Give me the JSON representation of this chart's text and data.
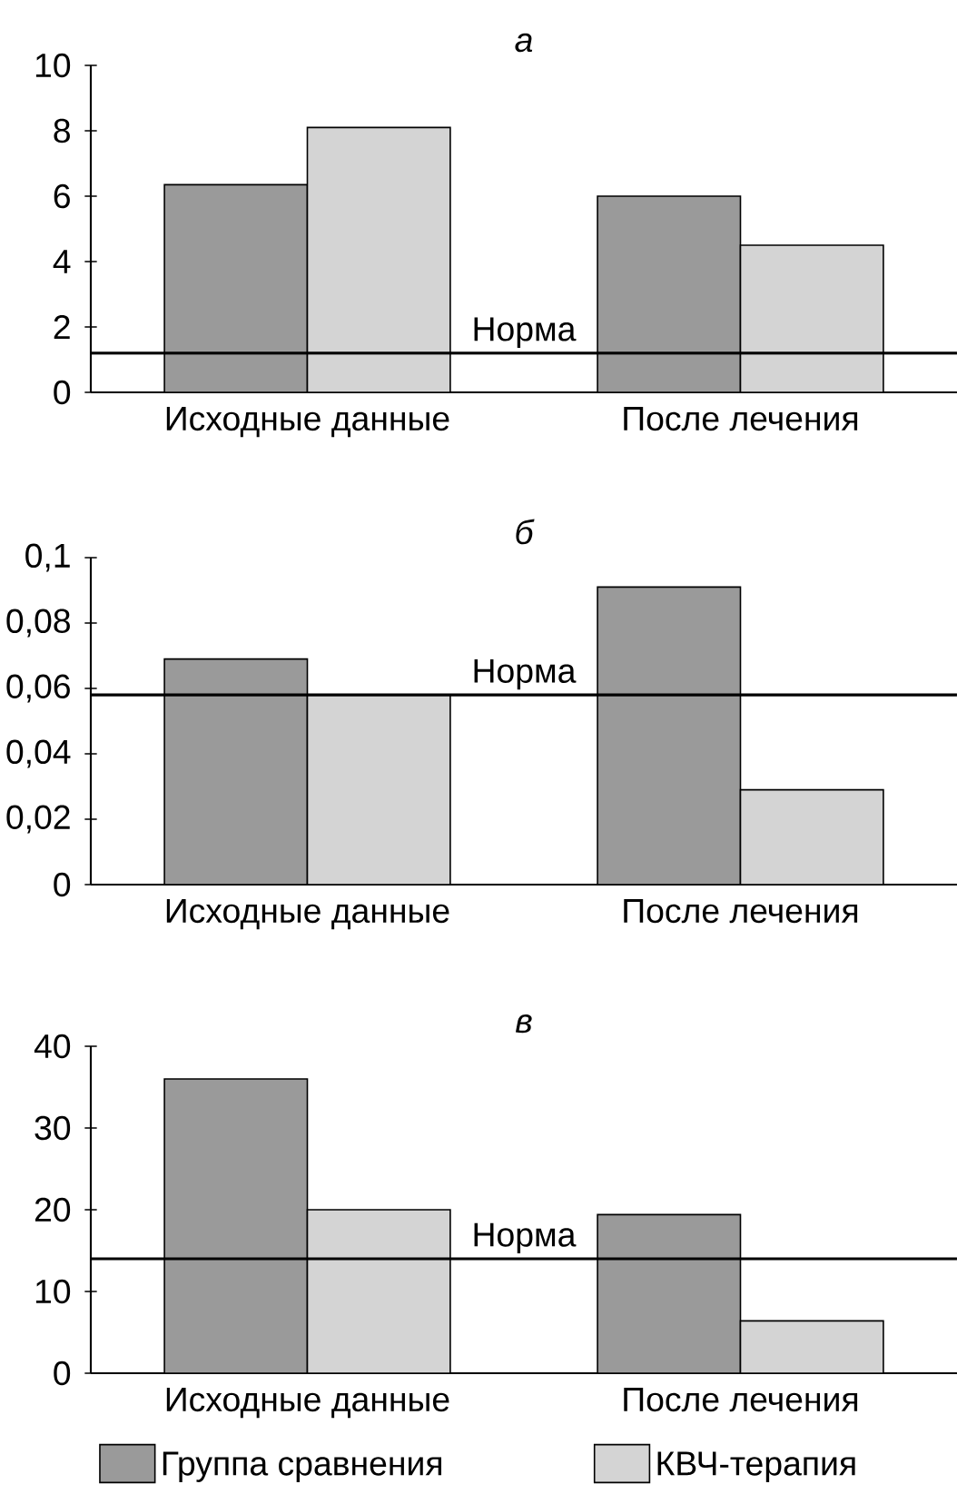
{
  "chart_data": [
    {
      "type": "bar",
      "title": "а",
      "categories": [
        "Исходные данные",
        "После лечения"
      ],
      "series": [
        {
          "color": "#9a9a9a",
          "values": [
            6.35,
            6.0
          ]
        },
        {
          "color": "#d4d4d4",
          "values": [
            8.1,
            4.5
          ]
        }
      ],
      "ylim": [
        0,
        10
      ],
      "yticks": [
        0,
        2,
        4,
        6,
        8,
        10
      ],
      "ref_lines": [
        {
          "axis": "y",
          "value": 1.2,
          "label": "Норма"
        }
      ]
    },
    {
      "type": "bar",
      "title": "б",
      "categories": [
        "Исходные данные",
        "После лечения"
      ],
      "series": [
        {
          "color": "#9a9a9a",
          "values": [
            0.069,
            0.091
          ]
        },
        {
          "color": "#d4d4d4",
          "values": [
            0.058,
            0.029
          ]
        }
      ],
      "ylim": [
        0,
        0.1
      ],
      "yticks": [
        {
          "value": 0,
          "label": "0"
        },
        {
          "value": 0.02,
          "label": "0,02"
        },
        {
          "value": 0.04,
          "label": "0,04"
        },
        {
          "value": 0.06,
          "label": "0,06"
        },
        {
          "value": 0.08,
          "label": "0,08"
        },
        {
          "value": 0.1,
          "label": "0,1"
        }
      ],
      "ref_lines": [
        {
          "axis": "y",
          "value": 0.058,
          "label": "Норма"
        }
      ]
    },
    {
      "type": "bar",
      "title": "в",
      "categories": [
        "Исходные данные",
        "После лечения"
      ],
      "series": [
        {
          "name": "Группа сравнения",
          "color": "#9a9a9a",
          "values": [
            36,
            19.4
          ]
        },
        {
          "name": "КВЧ-терапия",
          "color": "#d4d4d4",
          "values": [
            20,
            6.4
          ]
        }
      ],
      "ylim": [
        0,
        40
      ],
      "yticks": [
        0,
        10,
        20,
        30,
        40
      ],
      "ref_lines": [
        {
          "axis": "y",
          "value": 14,
          "label": "Норма"
        }
      ],
      "legend": "bottom"
    }
  ]
}
